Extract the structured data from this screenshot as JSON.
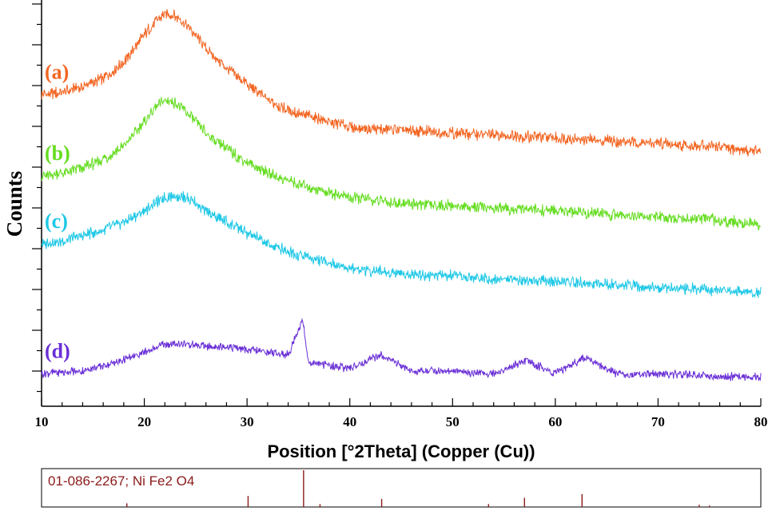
{
  "chart_data": [
    {
      "type": "line",
      "xlabel": "Position [°2Theta] (Copper (Cu))",
      "ylabel": "Counts",
      "xlim": [
        10,
        80
      ],
      "x_ticks": [
        10,
        20,
        30,
        40,
        50,
        60,
        70,
        80
      ],
      "y_tick_labels_shown": false,
      "grid": false,
      "series": [
        {
          "name": "(a)",
          "color": "#f26522",
          "x": [
            10,
            12,
            14,
            16,
            18,
            20,
            21,
            22,
            23,
            24,
            25,
            26,
            28,
            30,
            32,
            35,
            38,
            40,
            45,
            50,
            55,
            60,
            65,
            70,
            75,
            80
          ],
          "y": [
            0.6,
            0.61,
            0.63,
            0.66,
            0.72,
            0.82,
            0.87,
            0.9,
            0.89,
            0.86,
            0.82,
            0.77,
            0.7,
            0.64,
            0.58,
            0.53,
            0.5,
            0.48,
            0.47,
            0.46,
            0.45,
            0.44,
            0.43,
            0.42,
            0.41,
            0.39
          ]
        },
        {
          "name": "(b)",
          "color": "#66dd22",
          "x": [
            10,
            12,
            14,
            16,
            18,
            20,
            21,
            22,
            23,
            24,
            25,
            26,
            28,
            30,
            32,
            35,
            38,
            40,
            45,
            50,
            55,
            60,
            65,
            70,
            75,
            80
          ],
          "y": [
            0.3,
            0.31,
            0.33,
            0.36,
            0.41,
            0.5,
            0.55,
            0.58,
            0.57,
            0.54,
            0.5,
            0.46,
            0.4,
            0.35,
            0.31,
            0.27,
            0.24,
            0.22,
            0.2,
            0.19,
            0.18,
            0.17,
            0.16,
            0.15,
            0.14,
            0.12
          ]
        },
        {
          "name": "(c)",
          "color": "#1ec8e6",
          "x": [
            10,
            12,
            14,
            16,
            18,
            20,
            21,
            22,
            23,
            24,
            25,
            26,
            28,
            30,
            32,
            35,
            38,
            40,
            45,
            50,
            55,
            60,
            65,
            70,
            75,
            80
          ],
          "y": [
            0.05,
            0.06,
            0.08,
            0.1,
            0.13,
            0.17,
            0.2,
            0.22,
            0.23,
            0.22,
            0.2,
            0.17,
            0.13,
            0.09,
            0.05,
            0.01,
            -0.02,
            -0.04,
            -0.06,
            -0.07,
            -0.08,
            -0.09,
            -0.1,
            -0.11,
            -0.12,
            -0.13
          ]
        },
        {
          "name": "(d)",
          "color": "#6a2fd6",
          "x": [
            10,
            14,
            18,
            20,
            22,
            24,
            26,
            28,
            30,
            32,
            34,
            35.4,
            36,
            38,
            40,
            43.1,
            46,
            50,
            54,
            57.2,
            60,
            62.8,
            66,
            70,
            75,
            80
          ],
          "y": [
            -0.43,
            -0.42,
            -0.38,
            -0.35,
            -0.32,
            -0.32,
            -0.33,
            -0.33,
            -0.34,
            -0.35,
            -0.36,
            -0.23,
            -0.39,
            -0.4,
            -0.41,
            -0.36,
            -0.42,
            -0.42,
            -0.43,
            -0.38,
            -0.43,
            -0.37,
            -0.43,
            -0.43,
            -0.44,
            -0.44
          ]
        }
      ]
    },
    {
      "type": "bar",
      "title": "01-086-2267; Ni Fe2 O4",
      "xlim": [
        10,
        80
      ],
      "color": "#8b1a1a",
      "peaks": [
        {
          "x": 18.3,
          "rel": 0.1
        },
        {
          "x": 30.1,
          "rel": 0.3
        },
        {
          "x": 35.5,
          "rel": 1.0
        },
        {
          "x": 37.1,
          "rel": 0.08
        },
        {
          "x": 43.1,
          "rel": 0.22
        },
        {
          "x": 53.5,
          "rel": 0.08
        },
        {
          "x": 57.0,
          "rel": 0.25
        },
        {
          "x": 62.6,
          "rel": 0.35
        },
        {
          "x": 74.0,
          "rel": 0.06
        },
        {
          "x": 75.0,
          "rel": 0.04
        }
      ]
    }
  ]
}
